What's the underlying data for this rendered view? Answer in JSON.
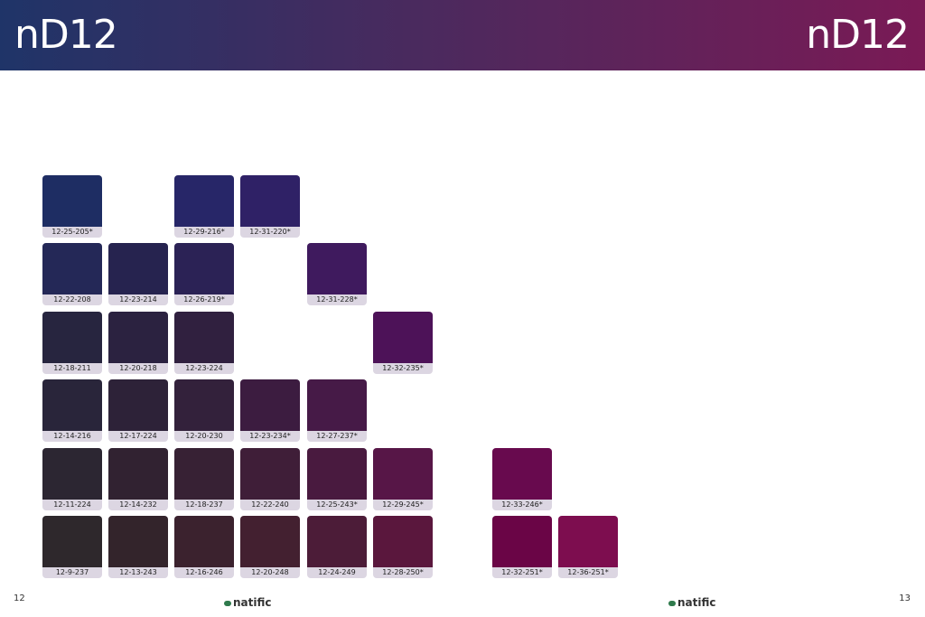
{
  "header": {
    "left_title": "nD12",
    "right_title": "nD12"
  },
  "rows": [
    [
      {
        "label": "12-25-205*",
        "color": "#1e2d63"
      },
      null,
      {
        "label": "12-29-216*",
        "color": "#272668"
      },
      {
        "label": "12-31-220*",
        "color": "#2f2166"
      },
      null,
      null,
      null,
      null
    ],
    [
      {
        "label": "12-22-208",
        "color": "#242857"
      },
      {
        "label": "12-23-214",
        "color": "#26234f"
      },
      {
        "label": "12-26-219*",
        "color": "#2b2255"
      },
      null,
      {
        "label": "12-31-228*",
        "color": "#3f1a5e"
      },
      null,
      null,
      null
    ],
    [
      {
        "label": "12-18-211",
        "color": "#27253f"
      },
      {
        "label": "12-20-218",
        "color": "#2b2240"
      },
      {
        "label": "12-23-224",
        "color": "#30203f"
      },
      null,
      null,
      {
        "label": "12-32-235*",
        "color": "#4d1258"
      },
      null,
      null
    ],
    [
      {
        "label": "12-14-216",
        "color": "#29253a"
      },
      {
        "label": "12-17-224",
        "color": "#2d2238"
      },
      {
        "label": "12-20-230",
        "color": "#33213b"
      },
      {
        "label": "12-23-234*",
        "color": "#3c1c40"
      },
      {
        "label": "12-27-237*",
        "color": "#461a47"
      },
      null,
      null,
      null
    ],
    [
      {
        "label": "12-11-224",
        "color": "#2c2632"
      },
      {
        "label": "12-14-232",
        "color": "#312231"
      },
      {
        "label": "12-18-237",
        "color": "#372134"
      },
      {
        "label": "12-22-240",
        "color": "#3f1e38"
      },
      {
        "label": "12-25-243*",
        "color": "#491a3f"
      },
      {
        "label": "12-29-245*",
        "color": "#571647"
      },
      {
        "label": "12-33-246*",
        "color": "#680a4e"
      },
      null
    ],
    [
      {
        "label": "12-9-237",
        "color": "#2e282c"
      },
      {
        "label": "12-13-243",
        "color": "#33242b"
      },
      {
        "label": "12-16-246",
        "color": "#3b222e"
      },
      {
        "label": "12-20-248",
        "color": "#432030"
      },
      {
        "label": "12-24-249",
        "color": "#4c1c38"
      },
      {
        "label": "12-28-250*",
        "color": "#5a173d"
      },
      {
        "label": "12-32-251*",
        "color": "#6a0546"
      },
      {
        "label": "12-36-251*",
        "color": "#7d0d4f"
      }
    ]
  ],
  "footer": {
    "left_page": "12",
    "right_page": "13",
    "left_logo": "natific",
    "right_logo": "natific"
  }
}
